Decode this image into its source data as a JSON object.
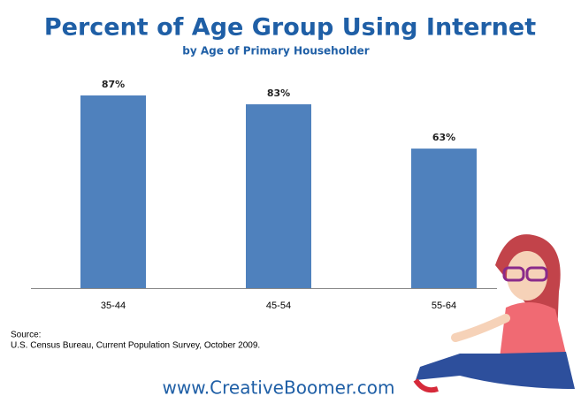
{
  "chart_data": {
    "type": "bar",
    "title": "Percent of Age Group Using Internet",
    "subtitle": "by Age of Primary Householder",
    "categories": [
      "35-44",
      "45-54",
      "55-64"
    ],
    "values": [
      87,
      83,
      63
    ],
    "value_labels": [
      "87%",
      "83%",
      "63%"
    ],
    "color": "#4f81bd",
    "source_label": "Source:",
    "source": "U.S. Census Bureau, Current Population Survey, October 2009.",
    "website": "www.CreativeBoomer.com"
  }
}
